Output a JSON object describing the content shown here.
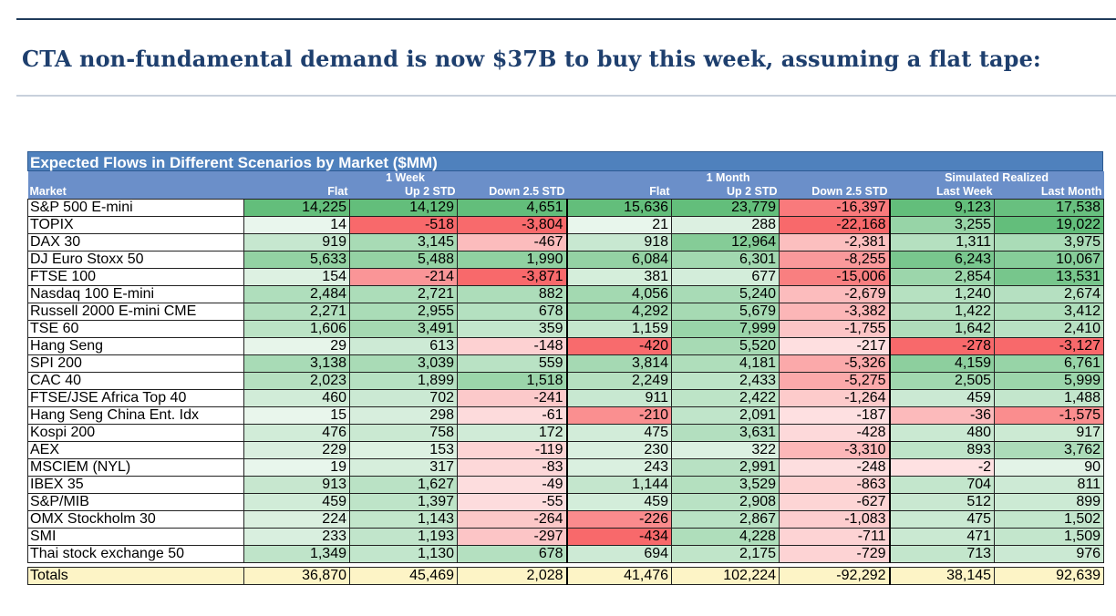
{
  "headline": "CTA non-fundamental demand is now $37B to buy this week, assuming a flat tape:",
  "table": {
    "title": "Expected Flows in Different Scenarios by Market ($MM)",
    "group_headers": [
      "1 Week",
      "1 Month",
      "Simulated Realized"
    ],
    "columns": [
      "Market",
      "Flat",
      "Up 2 STD",
      "Down 2.5 STD",
      "Flat",
      "Up 2 STD",
      "Down 2.5 STD",
      "Last Week",
      "Last Month"
    ],
    "rows": [
      {
        "market": "S&P 500 E-mini",
        "values": [
          "14,225",
          "14,129",
          "4,651",
          "15,636",
          "23,779",
          "-16,397",
          "9,123",
          "17,538"
        ]
      },
      {
        "market": "TOPIX",
        "values": [
          "14",
          "-518",
          "-3,804",
          "21",
          "288",
          "-22,168",
          "3,255",
          "19,022"
        ]
      },
      {
        "market": "DAX 30",
        "values": [
          "919",
          "3,145",
          "-467",
          "918",
          "12,964",
          "-2,381",
          "1,311",
          "3,975"
        ]
      },
      {
        "market": "DJ Euro Stoxx 50",
        "values": [
          "5,633",
          "5,488",
          "1,990",
          "6,084",
          "6,301",
          "-8,255",
          "6,243",
          "10,067"
        ]
      },
      {
        "market": "FTSE 100",
        "values": [
          "154",
          "-214",
          "-3,871",
          "381",
          "677",
          "-15,006",
          "2,854",
          "13,531"
        ]
      },
      {
        "market": "Nasdaq 100 E-mini",
        "values": [
          "2,484",
          "2,721",
          "882",
          "4,056",
          "5,240",
          "-2,679",
          "1,240",
          "2,674"
        ]
      },
      {
        "market": "Russell 2000 E-mini CME",
        "values": [
          "2,271",
          "2,955",
          "678",
          "4,292",
          "5,679",
          "-3,382",
          "1,422",
          "3,412"
        ]
      },
      {
        "market": "TSE 60",
        "values": [
          "1,606",
          "3,491",
          "359",
          "1,159",
          "7,999",
          "-1,755",
          "1,642",
          "2,410"
        ]
      },
      {
        "market": "Hang Seng",
        "values": [
          "29",
          "613",
          "-148",
          "-420",
          "5,520",
          "-217",
          "-278",
          "-3,127"
        ]
      },
      {
        "market": "SPI 200",
        "values": [
          "3,138",
          "3,039",
          "559",
          "3,814",
          "4,181",
          "-5,326",
          "4,159",
          "6,761"
        ]
      },
      {
        "market": "CAC 40",
        "values": [
          "2,023",
          "1,899",
          "1,518",
          "2,249",
          "2,433",
          "-5,275",
          "2,505",
          "5,999"
        ]
      },
      {
        "market": "FTSE/JSE Africa Top 40",
        "values": [
          "460",
          "702",
          "-241",
          "911",
          "2,422",
          "-1,264",
          "459",
          "1,488"
        ]
      },
      {
        "market": "Hang Seng China Ent. Idx",
        "values": [
          "15",
          "298",
          "-61",
          "-210",
          "2,091",
          "-187",
          "-36",
          "-1,575"
        ]
      },
      {
        "market": "Kospi 200",
        "values": [
          "476",
          "758",
          "172",
          "475",
          "3,631",
          "-428",
          "480",
          "917"
        ]
      },
      {
        "market": "AEX",
        "values": [
          "229",
          "153",
          "-119",
          "230",
          "322",
          "-3,310",
          "893",
          "3,762"
        ]
      },
      {
        "market": "MSCIEM (NYL)",
        "values": [
          "19",
          "317",
          "-83",
          "243",
          "2,991",
          "-248",
          "-2",
          "90"
        ]
      },
      {
        "market": "IBEX 35",
        "values": [
          "913",
          "1,627",
          "-49",
          "1,144",
          "3,529",
          "-863",
          "704",
          "811"
        ]
      },
      {
        "market": "S&P/MIB",
        "values": [
          "459",
          "1,397",
          "-55",
          "459",
          "2,908",
          "-627",
          "512",
          "899"
        ]
      },
      {
        "market": "OMX Stockholm 30",
        "values": [
          "224",
          "1,143",
          "-264",
          "-226",
          "2,867",
          "-1,083",
          "475",
          "1,502"
        ]
      },
      {
        "market": "SMI",
        "values": [
          "233",
          "1,193",
          "-297",
          "-434",
          "4,228",
          "-711",
          "471",
          "1,509"
        ]
      },
      {
        "market": "Thai stock exchange 50",
        "values": [
          "1,349",
          "1,130",
          "678",
          "694",
          "2,175",
          "-729",
          "713",
          "976"
        ]
      }
    ],
    "totals": {
      "label": "Totals",
      "values": [
        "36,870",
        "45,469",
        "2,028",
        "41,476",
        "102,224",
        "-92,292",
        "38,145",
        "92,639"
      ]
    }
  },
  "colors": {
    "positive": "#63be7b",
    "negative": "#f8696b",
    "neutral": "#ffffff",
    "title_bar": "#4f81bd",
    "header": "#6b8fc9",
    "totals": "#fdf4c6",
    "headline": "#1e3f6e"
  }
}
